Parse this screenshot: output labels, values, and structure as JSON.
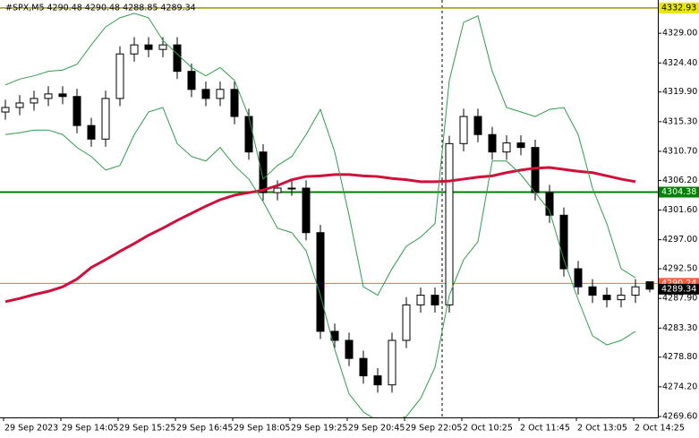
{
  "chart_data": {
    "type": "candlestick",
    "title": "#SPX,M5  4290.48 4290.48 4288.85 4289.34",
    "categories": [
      "29 Sep 2023",
      null,
      null,
      null,
      "29 Sep 14:05",
      null,
      null,
      null,
      "29 Sep 15:25",
      null,
      null,
      null,
      "29 Sep 16:45",
      null,
      null,
      null,
      "29 Sep 18:05",
      null,
      null,
      null,
      "29 Sep 19:25",
      null,
      null,
      null,
      "29 Sep 20:45",
      null,
      null,
      null,
      "29 Sep 22:05",
      null,
      null,
      null,
      "2 Oct 10:25",
      null,
      null,
      null,
      "2 Oct 11:45",
      null,
      null,
      null,
      "2 Oct 13:05",
      null,
      null,
      null,
      "2 Oct 14:25",
      null
    ],
    "open": [
      4316.8,
      4317.5,
      4318.2,
      4318.9,
      4319.6,
      4319.2,
      4314.7,
      4312.6,
      4318.9,
      4325.8,
      4327.2,
      4326.5,
      4327.2,
      4323.1,
      4320.3,
      4318.9,
      4320.3,
      4316.1,
      4310.6,
      4304.3,
      4305.0,
      4305.0,
      4298.1,
      4282.8,
      4281.4,
      4278.6,
      4275.9,
      4274.5,
      4281.4,
      4286.9,
      4288.4,
      4286.9,
      4311.9,
      4316.1,
      4313.3,
      4310.6,
      4312.0,
      4311.3,
      4304.3,
      4300.8,
      4292.5,
      4289.7,
      4288.4,
      4287.7,
      4288.4,
      4290.48
    ],
    "high": [
      4318.7,
      4319.4,
      4320.1,
      4320.8,
      4320.8,
      4320.4,
      4315.9,
      4320.1,
      4327.0,
      4328.4,
      4328.4,
      4328.4,
      4328.4,
      4324.3,
      4321.5,
      4321.5,
      4321.5,
      4317.3,
      4311.8,
      4306.2,
      4306.2,
      4306.2,
      4299.3,
      4284.0,
      4282.6,
      4279.8,
      4277.1,
      4282.6,
      4288.1,
      4289.6,
      4289.6,
      4313.1,
      4317.3,
      4317.3,
      4314.5,
      4313.2,
      4313.2,
      4312.5,
      4305.5,
      4302.0,
      4293.7,
      4290.9,
      4289.6,
      4289.6,
      4290.9,
      4290.48
    ],
    "low": [
      4315.6,
      4316.3,
      4317.0,
      4317.7,
      4318.0,
      4313.5,
      4311.4,
      4311.4,
      4317.7,
      4324.6,
      4325.3,
      4325.3,
      4321.9,
      4319.1,
      4317.7,
      4317.7,
      4314.9,
      4309.4,
      4303.1,
      4303.1,
      4303.8,
      4296.9,
      4281.6,
      4280.2,
      4277.4,
      4274.7,
      4273.3,
      4273.3,
      4280.2,
      4285.7,
      4285.7,
      4285.7,
      4310.7,
      4312.1,
      4309.4,
      4309.4,
      4310.1,
      4303.1,
      4299.6,
      4291.3,
      4288.5,
      4287.2,
      4286.5,
      4286.5,
      4287.2,
      4288.85
    ],
    "close": [
      4317.5,
      4318.2,
      4318.9,
      4319.6,
      4319.2,
      4314.7,
      4312.6,
      4318.9,
      4325.8,
      4327.2,
      4326.5,
      4327.2,
      4323.1,
      4320.3,
      4318.9,
      4320.3,
      4316.1,
      4310.6,
      4304.3,
      4305.0,
      4305.0,
      4298.1,
      4282.8,
      4281.4,
      4278.6,
      4275.9,
      4274.5,
      4281.4,
      4286.9,
      4288.4,
      4286.9,
      4311.9,
      4316.1,
      4313.3,
      4310.6,
      4312.0,
      4311.3,
      4304.3,
      4300.8,
      4292.5,
      4289.7,
      4288.4,
      4287.7,
      4288.4,
      4289.7,
      4289.34
    ],
    "up_color": "#ffffff",
    "down_color": "#000000",
    "lines": [
      {
        "color": "#d0103a",
        "width": 3,
        "values": [
          4287.4,
          4287.9,
          4288.5,
          4289.0,
          4289.7,
          4290.9,
          4292.7,
          4293.9,
          4295.2,
          4296.4,
          4297.7,
          4298.8,
          4300.0,
          4301.1,
          4302.2,
          4303.2,
          4303.9,
          4304.3,
          4304.7,
          4305.4,
          4306.3,
          4306.8,
          4306.9,
          4307.1,
          4307.1,
          4306.9,
          4306.8,
          4306.5,
          4306.3,
          4306.0,
          4306.0,
          4306.1,
          4306.4,
          4306.7,
          4306.9,
          4307.4,
          4307.8,
          4308.1,
          4308.2,
          4307.9,
          4307.6,
          4307.4,
          4306.9,
          4306.4,
          4306.0,
          null
        ]
      },
      {
        "color": "#2e9e4a",
        "width": 1,
        "values": [
          4321.0,
          4321.9,
          4322.4,
          4323.1,
          4323.3,
          4324.2,
          4327.2,
          4330.0,
          4331.4,
          4332.1,
          4331.4,
          4327.9,
          4325.8,
          4323.7,
          4322.4,
          4323.7,
          4321.7,
          4316.1,
          4306.4,
          4308.5,
          4309.9,
          4313.3,
          4317.2,
          4310.6,
          4300.8,
          4289.7,
          4288.4,
          4292.5,
          4296.0,
          4297.4,
          4299.5,
          4321.7,
          4330.7,
          4331.7,
          4323.1,
          4317.5,
          4316.8,
          4316.1,
          4317.2,
          4317.5,
          4313.3,
          4305.0,
          4299.5,
          4292.5,
          4291.1,
          null
        ]
      },
      {
        "color": "#2e9e4a",
        "width": 1,
        "values": [
          4313.3,
          4313.6,
          4314.0,
          4314.0,
          4313.3,
          4311.3,
          4309.9,
          4307.8,
          4308.5,
          4313.3,
          4316.8,
          4317.5,
          4311.9,
          4309.9,
          4309.2,
          4311.3,
          4308.5,
          4306.4,
          4302.9,
          4298.8,
          4298.1,
          4295.3,
          4288.4,
          4280.0,
          4273.1,
          4270.3,
          4268.9,
          4268.9,
          4269.6,
          4272.4,
          4277.2,
          4288.4,
          4293.9,
          4296.7,
          4309.2,
          4309.2,
          4307.1,
          4304.3,
          4301.5,
          4293.9,
          4287.7,
          4282.1,
          4280.7,
          4281.4,
          4282.8,
          null
        ]
      }
    ],
    "levels": [
      {
        "value": 4332.93,
        "color": "#9a9a00",
        "label_bg": "#e8e800",
        "label_fg": "#000000",
        "width": 1.5
      },
      {
        "value": 4304.38,
        "color": "#008000",
        "label_bg": "#008000",
        "label_fg": "#ffffff",
        "width": 2
      },
      {
        "value": 4290.24,
        "color": "#ff6a2a",
        "label_bg": "#ff5a3a",
        "label_fg": "#ffffff",
        "width": 1
      },
      {
        "value": 4289.34,
        "color": null,
        "label_bg": "#000000",
        "label_fg": "#ffffff",
        "width": 0
      }
    ],
    "ylim": [
      4269.46,
      4334.16
    ],
    "yticks": [
      {
        "value": 4329.0,
        "label": "4329.00"
      },
      {
        "value": 4324.4,
        "label": "4324.40"
      },
      {
        "value": 4319.9,
        "label": "4319.90"
      },
      {
        "value": 4315.3,
        "label": "4315.30"
      },
      {
        "value": 4310.7,
        "label": "4310.70"
      },
      {
        "value": 4306.2,
        "label": "4306.20"
      },
      {
        "value": 4301.6,
        "label": "4301.60"
      },
      {
        "value": 4297.0,
        "label": "4297.00"
      },
      {
        "value": 4292.5,
        "label": "4292.50"
      },
      {
        "value": 4287.9,
        "label": "4287.90"
      },
      {
        "value": 4283.3,
        "label": "4283.30"
      },
      {
        "value": 4278.8,
        "label": "4278.80"
      },
      {
        "value": 4274.2,
        "label": "4274.20"
      },
      {
        "value": 4269.6,
        "label": "4269.60"
      }
    ]
  }
}
